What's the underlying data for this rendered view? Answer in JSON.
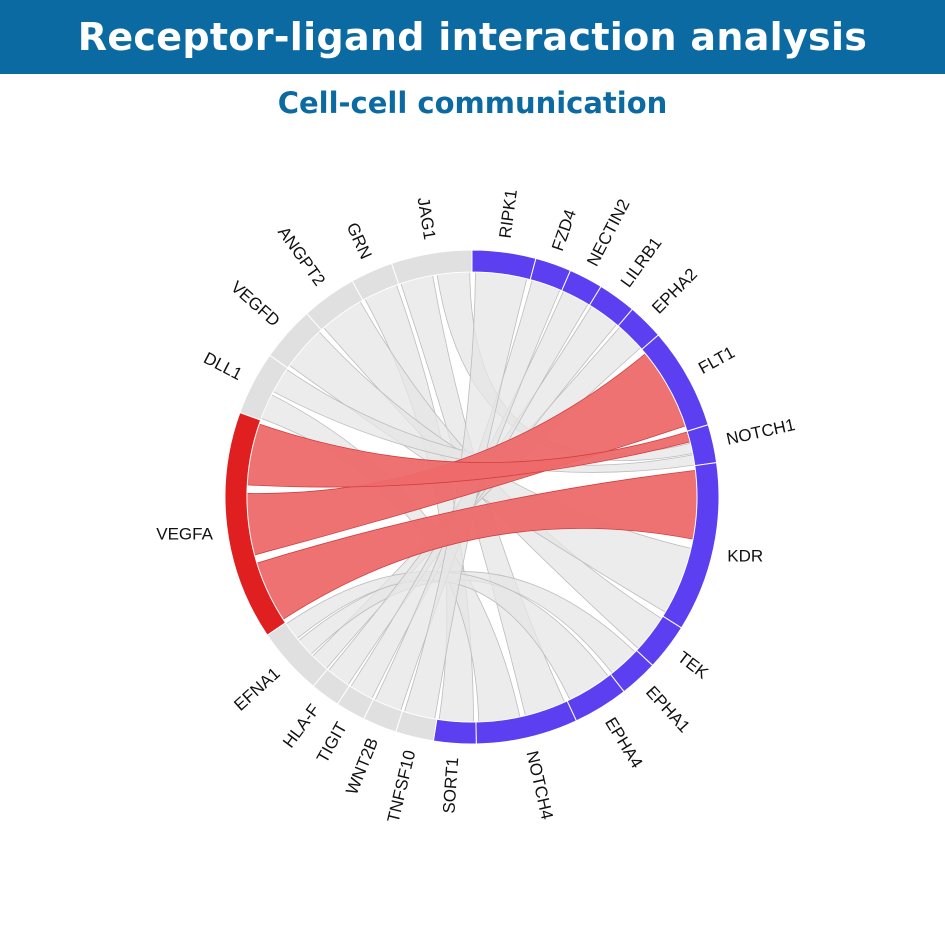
{
  "header": {
    "title": "Receptor-ligand interaction analysis"
  },
  "subtitle": "Cell-cell communication",
  "colors": {
    "header_bg": "#0b6aa2",
    "subtitle": "#0b6aa2",
    "receptor_arc": "#5b3ff0",
    "ligand_arc": "#e0e0e0",
    "highlight_arc": "#e02020",
    "highlight_ribbon": "#ee6a6a",
    "ribbon": "#e6e6e6"
  },
  "chord": {
    "receptors": [
      "RIPK1",
      "FZD4",
      "NECTIN2",
      "LILRB1",
      "EPHA2",
      "FLT1",
      "NOTCH1",
      "KDR",
      "TEK",
      "EPHA1",
      "EPHA4",
      "NOTCH4",
      "SORT1"
    ],
    "ligands": [
      "TNFSF10",
      "WNT2B",
      "TIGIT",
      "HLA-F",
      "EFNA1",
      "VEGFA",
      "DLL1",
      "VEGFD",
      "ANGPT2",
      "GRN",
      "JAG1"
    ],
    "highlighted": "VEGFA",
    "interactions": [
      {
        "ligand": "VEGFA",
        "receptor": "KDR"
      },
      {
        "ligand": "VEGFA",
        "receptor": "FLT1"
      },
      {
        "ligand": "VEGFA",
        "receptor": "NOTCH1"
      },
      {
        "ligand": "JAG1",
        "receptor": "NOTCH4"
      },
      {
        "ligand": "JAG1",
        "receptor": "NOTCH1"
      },
      {
        "ligand": "GRN",
        "receptor": "SORT1"
      },
      {
        "ligand": "ANGPT2",
        "receptor": "TEK"
      },
      {
        "ligand": "VEGFD",
        "receptor": "KDR"
      },
      {
        "ligand": "DLL1",
        "receptor": "NOTCH4"
      },
      {
        "ligand": "DLL1",
        "receptor": "NOTCH1"
      },
      {
        "ligand": "EFNA1",
        "receptor": "EPHA2"
      },
      {
        "ligand": "EFNA1",
        "receptor": "EPHA1"
      },
      {
        "ligand": "EFNA1",
        "receptor": "EPHA4"
      },
      {
        "ligand": "HLA-F",
        "receptor": "LILRB1"
      },
      {
        "ligand": "TIGIT",
        "receptor": "NECTIN2"
      },
      {
        "ligand": "WNT2B",
        "receptor": "FZD4"
      },
      {
        "ligand": "TNFSF10",
        "receptor": "RIPK1"
      }
    ]
  }
}
